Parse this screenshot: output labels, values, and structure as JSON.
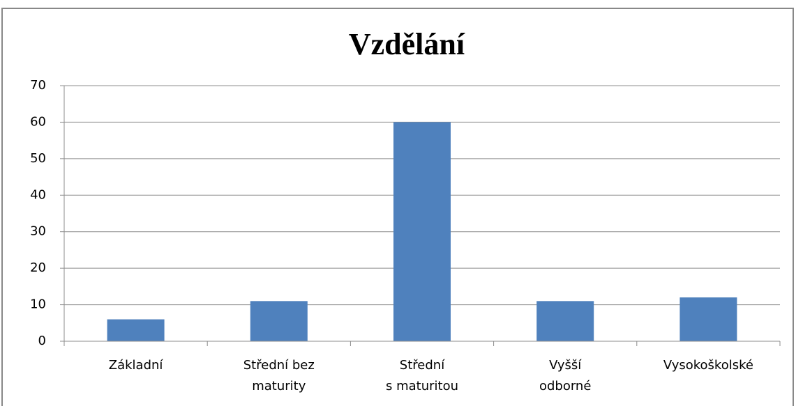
{
  "chart_data": {
    "type": "bar",
    "title": "Vzdělání",
    "categories": [
      "Základní",
      "Střední bez\nmaturity",
      "Střední\ns maturitou",
      "Vyšší\nodborné",
      "Vysokoškolské"
    ],
    "values": [
      6,
      11,
      60,
      11,
      12
    ],
    "color": "#4f81bd",
    "ylim": [
      0,
      70
    ],
    "yticks": [
      0,
      10,
      20,
      30,
      40,
      50,
      60,
      70
    ],
    "grid": true
  }
}
